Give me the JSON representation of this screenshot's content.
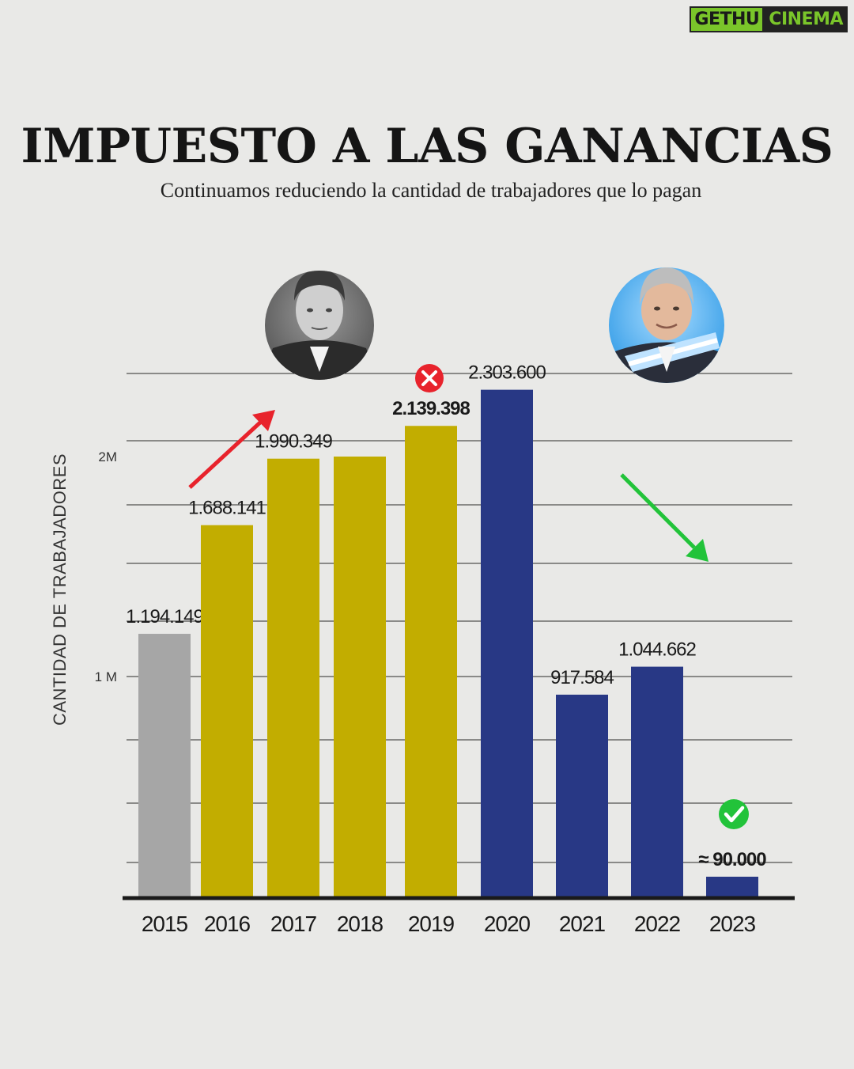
{
  "watermark": {
    "left": "GETHU",
    "right": "CINEMA"
  },
  "header": {
    "title": "IMPUESTO A LAS GANANCIAS",
    "subtitle": "Continuamos reduciendo la cantidad de trabajadores que lo pagan"
  },
  "colors": {
    "background": "#e9e9e7",
    "gray_bar": "#a6a6a6",
    "gold_bar": "#c2ad00",
    "navy_bar": "#283885",
    "red_arrow": "#e8232c",
    "green_arrow": "#22c33a"
  },
  "icons": {
    "up_arrow": "red-up-arrow-icon",
    "down_arrow": "green-down-arrow-icon",
    "error": "red-x-circle-icon",
    "check": "green-check-circle-icon",
    "portrait_left": "portrait-photo-left",
    "portrait_right": "portrait-photo-right"
  },
  "chart_data": {
    "type": "bar",
    "ylabel": "CANTIDAD DE TRABAJADORES",
    "ylim": [
      0,
      2600000
    ],
    "yticks": [
      {
        "value": 1000000,
        "label": "1 M"
      },
      {
        "value": 2000000,
        "label": "2M"
      }
    ],
    "grid": true,
    "categories": [
      "2015",
      "2016",
      "2017",
      "2018",
      "2019",
      "2020",
      "2021",
      "2022",
      "2023"
    ],
    "values": [
      1194149,
      1688141,
      1990349,
      2000000,
      2139398,
      2303600,
      917584,
      1044662,
      90000
    ],
    "value_labels": [
      "1.194.149",
      "1.688.141",
      "1.990.349",
      "",
      "2.139.398",
      "2.303.600",
      "917.584",
      "1.044.662",
      "≈ 90.000"
    ],
    "bold_labels": [
      false,
      false,
      false,
      false,
      true,
      false,
      false,
      false,
      true
    ],
    "bar_colors": [
      "#a6a6a6",
      "#c2ad00",
      "#c2ad00",
      "#c2ad00",
      "#c2ad00",
      "#283885",
      "#283885",
      "#283885",
      "#283885"
    ]
  }
}
